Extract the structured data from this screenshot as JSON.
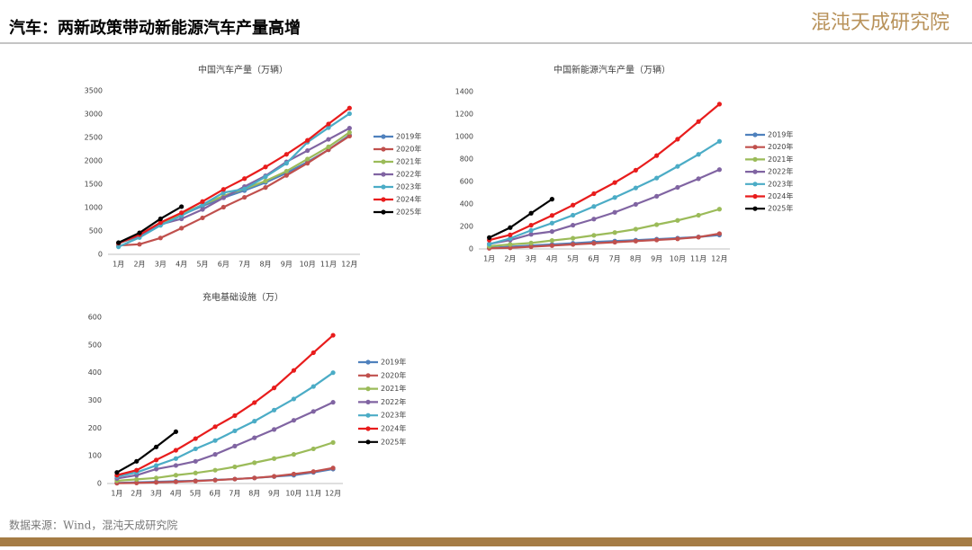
{
  "header": {
    "title": "汽车：两新政策带动新能源汽车产量高增",
    "logo": "混沌天成研究院"
  },
  "source": "数据来源：Wind，混沌天成研究院",
  "chart_data": [
    {
      "type": "line",
      "title": "中国汽车产量（万辆）",
      "categories": [
        "1月",
        "2月",
        "3月",
        "4月",
        "5月",
        "6月",
        "7月",
        "8月",
        "9月",
        "10月",
        "11月",
        "12月"
      ],
      "ylim": [
        0,
        3500
      ],
      "yticks": [
        0,
        500,
        1000,
        1500,
        2000,
        2500,
        3000,
        3500
      ],
      "grid": false,
      "legend": "right",
      "series": [
        {
          "name": "2019年",
          "color": "#4f81bd",
          "values": [
            237,
            385,
            640,
            845,
            1033,
            1213,
            1365,
            1537,
            1740,
            1976,
            2237,
            2552
          ]
        },
        {
          "name": "2020年",
          "color": "#c0504d",
          "values": [
            190,
            215,
            350,
            560,
            780,
            1010,
            1220,
            1430,
            1690,
            1950,
            2240,
            2530
          ]
        },
        {
          "name": "2021年",
          "color": "#9bbb59",
          "values": [
            240,
            390,
            630,
            860,
            1060,
            1250,
            1400,
            1570,
            1780,
            2040,
            2300,
            2610
          ]
        },
        {
          "name": "2022年",
          "color": "#8064a2",
          "values": [
            240,
            400,
            640,
            760,
            960,
            1210,
            1450,
            1680,
            1980,
            2220,
            2460,
            2700
          ]
        },
        {
          "name": "2023年",
          "color": "#4bacc6",
          "values": [
            160,
            360,
            620,
            830,
            1060,
            1320,
            1400,
            1660,
            1950,
            2400,
            2710,
            3010
          ]
        },
        {
          "name": "2024年",
          "color": "#e81c1c",
          "values": [
            240,
            420,
            680,
            890,
            1130,
            1390,
            1620,
            1870,
            2140,
            2440,
            2790,
            3130
          ]
        },
        {
          "name": "2025年",
          "color": "#000000",
          "values": [
            250,
            460,
            760,
            1020,
            null,
            null,
            null,
            null,
            null,
            null,
            null,
            null
          ]
        }
      ]
    },
    {
      "type": "line",
      "title": "中国新能源汽车产量（万辆）",
      "categories": [
        "1月",
        "2月",
        "3月",
        "4月",
        "5月",
        "6月",
        "7月",
        "8月",
        "9月",
        "10月",
        "11月",
        "12月"
      ],
      "ylim": [
        0,
        1400
      ],
      "yticks": [
        0,
        200,
        400,
        600,
        800,
        1000,
        1200,
        1400
      ],
      "grid": false,
      "legend": "right",
      "series": [
        {
          "name": "2019年",
          "color": "#4f81bd",
          "values": [
            9,
            20,
            30,
            40,
            50,
            62,
            70,
            78,
            87,
            96,
            107,
            124
          ]
        },
        {
          "name": "2020年",
          "color": "#c0504d",
          "values": [
            6,
            10,
            20,
            30,
            40,
            50,
            60,
            70,
            80,
            90,
            105,
            136
          ]
        },
        {
          "name": "2021年",
          "color": "#9bbb59",
          "values": [
            24,
            40,
            53,
            75,
            95,
            121,
            146,
            176,
            216,
            254,
            300,
            354
          ]
        },
        {
          "name": "2022年",
          "color": "#8064a2",
          "values": [
            45,
            79,
            130,
            155,
            211,
            266,
            326,
            397,
            469,
            548,
            625,
            706
          ]
        },
        {
          "name": "2023年",
          "color": "#4bacc6",
          "values": [
            42,
            94,
            165,
            230,
            300,
            378,
            458,
            543,
            631,
            735,
            842,
            958
          ]
        },
        {
          "name": "2024年",
          "color": "#e81c1c",
          "values": [
            79,
            125,
            211,
            298,
            390,
            492,
            591,
            701,
            831,
            977,
            1134,
            1289
          ]
        },
        {
          "name": "2025年",
          "color": "#000000",
          "values": [
            101,
            190,
            318,
            443,
            null,
            null,
            null,
            null,
            null,
            null,
            null,
            null
          ]
        }
      ]
    },
    {
      "type": "line",
      "title": "充电基础设施（万）",
      "categories": [
        "1月",
        "2月",
        "3月",
        "4月",
        "5月",
        "6月",
        "7月",
        "8月",
        "9月",
        "10月",
        "11月",
        "12月"
      ],
      "ylim": [
        0,
        600
      ],
      "yticks": [
        0,
        100,
        200,
        300,
        400,
        500,
        600
      ],
      "grid": false,
      "legend": "right",
      "series": [
        {
          "name": "2019年",
          "color": "#4f81bd",
          "values": [
            2,
            4,
            6,
            8,
            10,
            13,
            16,
            20,
            25,
            30,
            40,
            52
          ]
        },
        {
          "name": "2020年",
          "color": "#c0504d",
          "values": [
            1,
            2,
            4,
            6,
            9,
            12,
            16,
            20,
            26,
            34,
            43,
            56
          ]
        },
        {
          "name": "2021年",
          "color": "#9bbb59",
          "values": [
            10,
            15,
            20,
            30,
            38,
            48,
            60,
            75,
            90,
            105,
            125,
            148
          ]
        },
        {
          "name": "2022年",
          "color": "#8064a2",
          "values": [
            18,
            30,
            52,
            65,
            80,
            105,
            135,
            165,
            195,
            228,
            260,
            293
          ]
        },
        {
          "name": "2023年",
          "color": "#4bacc6",
          "values": [
            25,
            40,
            65,
            90,
            125,
            155,
            190,
            225,
            265,
            305,
            350,
            400
          ]
        },
        {
          "name": "2024年",
          "color": "#e81c1c",
          "values": [
            30,
            48,
            85,
            120,
            162,
            205,
            245,
            292,
            345,
            408,
            472,
            535
          ]
        },
        {
          "name": "2025年",
          "color": "#000000",
          "values": [
            40,
            80,
            132,
            187,
            null,
            null,
            null,
            null,
            null,
            null,
            null,
            null
          ]
        }
      ]
    }
  ]
}
